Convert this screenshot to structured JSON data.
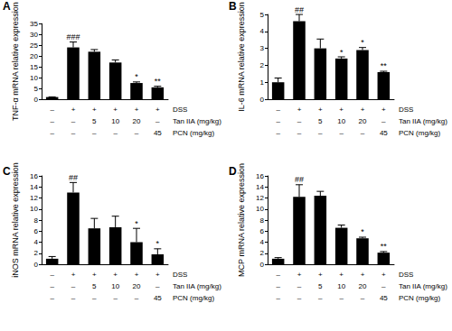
{
  "chart_data": [
    {
      "type": "bar",
      "title": "A",
      "y_label": "TNF-α mRNA relative expression",
      "values": [
        1,
        24,
        22,
        17,
        7.5,
        5.5
      ],
      "errors": [
        0.1,
        2.5,
        1,
        1.2,
        0.5,
        0.5
      ],
      "significance": [
        null,
        "###",
        null,
        null,
        "*",
        "**"
      ],
      "color": "#000000",
      "ylim": [
        0,
        35
      ],
      "yticks": [
        0,
        5,
        10,
        15,
        20,
        25,
        30,
        35
      ],
      "grid": false,
      "treatments": [
        {
          "name": "DSS",
          "values": [
            "–",
            "+",
            "+",
            "+",
            "+",
            "+"
          ]
        },
        {
          "name": "Tan IIA (mg/kg)",
          "values": [
            "–",
            "–",
            "5",
            "10",
            "20",
            "–"
          ]
        },
        {
          "name": "PCN (mg/kg)",
          "values": [
            "–",
            "–",
            "–",
            "–",
            "–",
            "45"
          ]
        }
      ]
    },
    {
      "type": "bar",
      "title": "B",
      "y_label": "IL-6 mRNA relative expression",
      "values": [
        1,
        4.6,
        3.0,
        2.4,
        2.9,
        1.6
      ],
      "errors": [
        0.25,
        0.4,
        0.55,
        0.1,
        0.15,
        0.05
      ],
      "significance": [
        null,
        "##",
        null,
        "*",
        "*",
        "**"
      ],
      "color": "#000000",
      "ylim": [
        0,
        5
      ],
      "yticks": [
        0,
        1,
        2,
        3,
        4,
        5
      ],
      "grid": false,
      "treatments": [
        {
          "name": "DSS",
          "values": [
            "–",
            "+",
            "+",
            "+",
            "+",
            "+"
          ]
        },
        {
          "name": "Tan IIA (mg/kg)",
          "values": [
            "–",
            "–",
            "5",
            "10",
            "20",
            "–"
          ]
        },
        {
          "name": "PCN (mg/kg)",
          "values": [
            "–",
            "–",
            "–",
            "–",
            "–",
            "45"
          ]
        }
      ]
    },
    {
      "type": "bar",
      "title": "C",
      "y_label": "iNOS mRNA relative expression",
      "values": [
        1,
        13,
        6.5,
        6.7,
        4,
        1.8
      ],
      "errors": [
        0.4,
        1.8,
        1.8,
        2.0,
        2.5,
        1.0
      ],
      "significance": [
        null,
        "##",
        null,
        null,
        "*",
        "*"
      ],
      "color": "#000000",
      "ylim": [
        0,
        16
      ],
      "yticks": [
        0,
        2,
        4,
        6,
        8,
        10,
        12,
        14,
        16
      ],
      "grid": false,
      "treatments": [
        {
          "name": "DSS",
          "values": [
            "–",
            "+",
            "+",
            "+",
            "+",
            "+"
          ]
        },
        {
          "name": "Tan IIA (mg/kg)",
          "values": [
            "–",
            "–",
            "5",
            "10",
            "20",
            "–"
          ]
        },
        {
          "name": "PCN (mg/kg)",
          "values": [
            "–",
            "–",
            "–",
            "–",
            "–",
            "45"
          ]
        }
      ]
    },
    {
      "type": "bar",
      "title": "D",
      "y_label": "MCP mRNA relative expression",
      "values": [
        1,
        12.2,
        12.4,
        6.6,
        4.7,
        2.1
      ],
      "errors": [
        0.2,
        2.2,
        0.8,
        0.5,
        0.2,
        0.2
      ],
      "significance": [
        null,
        "##",
        null,
        null,
        "*",
        "**"
      ],
      "color": "#000000",
      "ylim": [
        0,
        16
      ],
      "yticks": [
        0,
        2,
        4,
        6,
        8,
        10,
        12,
        14,
        16
      ],
      "grid": false,
      "treatments": [
        {
          "name": "DSS",
          "values": [
            "–",
            "+",
            "+",
            "+",
            "+",
            "+"
          ]
        },
        {
          "name": "Tan IIA (mg/kg)",
          "values": [
            "–",
            "–",
            "5",
            "10",
            "20",
            "–"
          ]
        },
        {
          "name": "PCN (mg/kg)",
          "values": [
            "–",
            "–",
            "–",
            "–",
            "–",
            "45"
          ]
        }
      ]
    }
  ]
}
